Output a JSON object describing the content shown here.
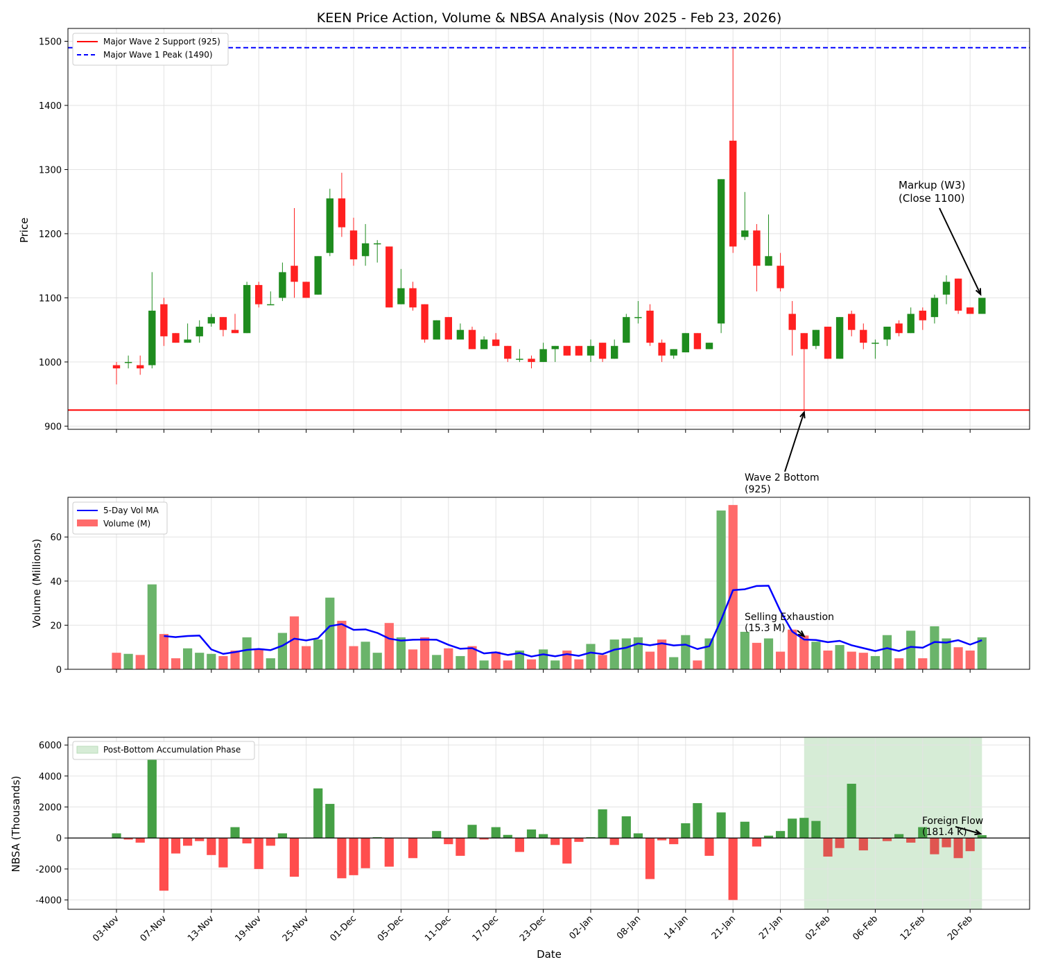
{
  "chart_data": {
    "type": "candlestick_volume_bar",
    "title": "KEEN Price Action, Volume & NBSA Analysis (Nov 2025 - Feb 23, 2026)",
    "xlabel": "Date",
    "x_tick_labels": [
      "03-Nov",
      "07-Nov",
      "13-Nov",
      "19-Nov",
      "25-Nov",
      "01-Dec",
      "05-Dec",
      "11-Dec",
      "17-Dec",
      "23-Dec",
      "02-Jan",
      "08-Jan",
      "14-Jan",
      "21-Jan",
      "27-Jan",
      "02-Feb",
      "06-Feb",
      "12-Feb",
      "20-Feb"
    ],
    "price_panel": {
      "ylabel": "Price",
      "ylim": [
        895,
        1520
      ],
      "yticks": [
        900,
        1000,
        1100,
        1200,
        1300,
        1400,
        1500
      ],
      "grid": true,
      "legend_position": "top-left",
      "reference_lines": [
        {
          "name": "Major Wave 2 Support (925)",
          "value": 925,
          "color": "#ff0000",
          "style": "solid"
        },
        {
          "name": "Major Wave 1 Peak (1490)",
          "value": 1490,
          "color": "#0000ff",
          "style": "dashed"
        }
      ],
      "candles": [
        {
          "o": 995,
          "h": 1000,
          "l": 965,
          "c": 990
        },
        {
          "o": 1000,
          "h": 1010,
          "l": 990,
          "c": 1000
        },
        {
          "o": 995,
          "h": 1010,
          "l": 980,
          "c": 990
        },
        {
          "o": 995,
          "h": 1140,
          "l": 990,
          "c": 1080
        },
        {
          "o": 1090,
          "h": 1100,
          "l": 1025,
          "c": 1040
        },
        {
          "o": 1045,
          "h": 1045,
          "l": 1030,
          "c": 1030
        },
        {
          "o": 1030,
          "h": 1060,
          "l": 1030,
          "c": 1035
        },
        {
          "o": 1040,
          "h": 1065,
          "l": 1030,
          "c": 1055
        },
        {
          "o": 1060,
          "h": 1075,
          "l": 1055,
          "c": 1070
        },
        {
          "o": 1070,
          "h": 1070,
          "l": 1040,
          "c": 1050
        },
        {
          "o": 1050,
          "h": 1075,
          "l": 1045,
          "c": 1045
        },
        {
          "o": 1045,
          "h": 1125,
          "l": 1045,
          "c": 1120
        },
        {
          "o": 1120,
          "h": 1125,
          "l": 1085,
          "c": 1090
        },
        {
          "o": 1090,
          "h": 1110,
          "l": 1090,
          "c": 1090
        },
        {
          "o": 1100,
          "h": 1155,
          "l": 1095,
          "c": 1140
        },
        {
          "o": 1150,
          "h": 1240,
          "l": 1100,
          "c": 1125
        },
        {
          "o": 1125,
          "h": 1125,
          "l": 1100,
          "c": 1100
        },
        {
          "o": 1105,
          "h": 1165,
          "l": 1105,
          "c": 1165
        },
        {
          "o": 1170,
          "h": 1270,
          "l": 1165,
          "c": 1255
        },
        {
          "o": 1255,
          "h": 1295,
          "l": 1195,
          "c": 1210
        },
        {
          "o": 1205,
          "h": 1225,
          "l": 1150,
          "c": 1160
        },
        {
          "o": 1165,
          "h": 1215,
          "l": 1150,
          "c": 1185
        },
        {
          "o": 1185,
          "h": 1190,
          "l": 1155,
          "c": 1185
        },
        {
          "o": 1180,
          "h": 1180,
          "l": 1085,
          "c": 1085
        },
        {
          "o": 1090,
          "h": 1145,
          "l": 1090,
          "c": 1115
        },
        {
          "o": 1115,
          "h": 1125,
          "l": 1080,
          "c": 1085
        },
        {
          "o": 1090,
          "h": 1090,
          "l": 1030,
          "c": 1035
        },
        {
          "o": 1035,
          "h": 1065,
          "l": 1035,
          "c": 1065
        },
        {
          "o": 1070,
          "h": 1070,
          "l": 1035,
          "c": 1035
        },
        {
          "o": 1035,
          "h": 1060,
          "l": 1035,
          "c": 1050
        },
        {
          "o": 1050,
          "h": 1055,
          "l": 1020,
          "c": 1020
        },
        {
          "o": 1020,
          "h": 1040,
          "l": 1020,
          "c": 1035
        },
        {
          "o": 1035,
          "h": 1045,
          "l": 1025,
          "c": 1025
        },
        {
          "o": 1025,
          "h": 1025,
          "l": 1000,
          "c": 1005
        },
        {
          "o": 1005,
          "h": 1020,
          "l": 1000,
          "c": 1005
        },
        {
          "o": 1005,
          "h": 1010,
          "l": 990,
          "c": 1000
        },
        {
          "o": 1000,
          "h": 1030,
          "l": 1000,
          "c": 1020
        },
        {
          "o": 1020,
          "h": 1025,
          "l": 1000,
          "c": 1025
        },
        {
          "o": 1025,
          "h": 1025,
          "l": 1010,
          "c": 1010
        },
        {
          "o": 1025,
          "h": 1025,
          "l": 1010,
          "c": 1010
        },
        {
          "o": 1010,
          "h": 1035,
          "l": 1000,
          "c": 1025
        },
        {
          "o": 1030,
          "h": 1030,
          "l": 1000,
          "c": 1005
        },
        {
          "o": 1005,
          "h": 1035,
          "l": 1005,
          "c": 1025
        },
        {
          "o": 1030,
          "h": 1075,
          "l": 1030,
          "c": 1070
        },
        {
          "o": 1070,
          "h": 1095,
          "l": 1060,
          "c": 1070
        },
        {
          "o": 1080,
          "h": 1090,
          "l": 1025,
          "c": 1030
        },
        {
          "o": 1030,
          "h": 1035,
          "l": 1000,
          "c": 1010
        },
        {
          "o": 1010,
          "h": 1020,
          "l": 1005,
          "c": 1020
        },
        {
          "o": 1015,
          "h": 1045,
          "l": 1015,
          "c": 1045
        },
        {
          "o": 1045,
          "h": 1045,
          "l": 1020,
          "c": 1020
        },
        {
          "o": 1020,
          "h": 1030,
          "l": 1020,
          "c": 1030
        },
        {
          "o": 1060,
          "h": 1285,
          "l": 1045,
          "c": 1285
        },
        {
          "o": 1345,
          "h": 1490,
          "l": 1170,
          "c": 1180
        },
        {
          "o": 1195,
          "h": 1265,
          "l": 1190,
          "c": 1205
        },
        {
          "o": 1205,
          "h": 1215,
          "l": 1110,
          "c": 1150
        },
        {
          "o": 1150,
          "h": 1230,
          "l": 1150,
          "c": 1165
        },
        {
          "o": 1150,
          "h": 1170,
          "l": 1110,
          "c": 1115
        },
        {
          "o": 1075,
          "h": 1095,
          "l": 1010,
          "c": 1050
        },
        {
          "o": 1045,
          "h": 1045,
          "l": 925,
          "c": 1020
        },
        {
          "o": 1025,
          "h": 1050,
          "l": 1020,
          "c": 1050
        },
        {
          "o": 1055,
          "h": 1055,
          "l": 1005,
          "c": 1005
        },
        {
          "o": 1005,
          "h": 1070,
          "l": 1005,
          "c": 1070
        },
        {
          "o": 1075,
          "h": 1080,
          "l": 1040,
          "c": 1050
        },
        {
          "o": 1050,
          "h": 1060,
          "l": 1020,
          "c": 1030
        },
        {
          "o": 1030,
          "h": 1035,
          "l": 1005,
          "c": 1030
        },
        {
          "o": 1035,
          "h": 1055,
          "l": 1025,
          "c": 1055
        },
        {
          "o": 1060,
          "h": 1065,
          "l": 1040,
          "c": 1045
        },
        {
          "o": 1045,
          "h": 1085,
          "l": 1045,
          "c": 1075
        },
        {
          "o": 1080,
          "h": 1085,
          "l": 1050,
          "c": 1065
        },
        {
          "o": 1070,
          "h": 1105,
          "l": 1060,
          "c": 1100
        },
        {
          "o": 1105,
          "h": 1135,
          "l": 1090,
          "c": 1125
        },
        {
          "o": 1130,
          "h": 1130,
          "l": 1075,
          "c": 1080
        },
        {
          "o": 1085,
          "h": 1085,
          "l": 1075,
          "c": 1075
        },
        {
          "o": 1075,
          "h": 1100,
          "l": 1075,
          "c": 1100
        }
      ],
      "annotations": [
        {
          "text": [
            "Markup (W3)",
            "(Close 1100)"
          ],
          "color": "#006400",
          "target_index": 73,
          "target_price": 1100
        },
        {
          "text": [
            "Wave 2 Bottom",
            "(925)"
          ],
          "color": "#ff0000",
          "target_index": 58,
          "target_price": 925
        }
      ]
    },
    "volume_panel": {
      "ylabel": "Volume (Millions)",
      "ylim": [
        0,
        78
      ],
      "yticks": [
        0,
        20,
        40,
        60
      ],
      "grid": true,
      "legend_position": "top-left",
      "series": [
        {
          "name": "Volume (M)",
          "values": [
            7.5,
            7,
            6.5,
            38.5,
            16,
            5,
            9.5,
            7.5,
            7,
            6,
            8.5,
            14.5,
            9,
            5,
            16.5,
            24,
            10.5,
            13.5,
            32.5,
            22,
            10.5,
            12.5,
            7.5,
            21,
            14.5,
            9,
            14.5,
            6.5,
            9.5,
            6,
            10.5,
            4,
            8,
            4,
            8.5,
            4.5,
            9,
            4,
            8.5,
            4.5,
            11.5,
            6.5,
            13.5,
            14,
            14.5,
            8,
            13.5,
            5.5,
            15.5,
            4,
            14,
            72,
            74.5,
            17,
            12,
            14,
            8,
            18,
            15.3,
            12.5,
            8.5,
            11,
            8,
            7.5,
            6,
            15.5,
            5,
            17.5,
            5,
            19.5,
            14,
            10,
            8.5,
            14.5
          ]
        },
        {
          "name": "5-Day Vol MA",
          "values": [
            null,
            null,
            null,
            null,
            15.1,
            14.6,
            15.1,
            15.3,
            9,
            7,
            7.8,
            8.8,
            9.2,
            8.7,
            10.7,
            13.9,
            13.1,
            14.1,
            19.6,
            20.5,
            17.9,
            18.1,
            16.5,
            13.9,
            13,
            13.4,
            13.5,
            13.4,
            11.1,
            9.3,
            9.6,
            7.2,
            7.7,
            6.5,
            7.4,
            5.8,
            6.8,
            5.9,
            6.9,
            6.1,
            7.6,
            6.9,
            8.9,
            9.8,
            11.7,
            10.9,
            11.8,
            10.8,
            11.2,
            9.2,
            10.5,
            22.4,
            35.9,
            36.3,
            37.8,
            37.9,
            26.4,
            17.1,
            13.5,
            13.3,
            12.3,
            12.9,
            10.9,
            9.6,
            8.3,
            9.6,
            8.3,
            10.2,
            9.8,
            12.4,
            12.1,
            13.2,
            11.2,
            13.2
          ]
        }
      ],
      "annotations": [
        {
          "text": [
            "Selling Exhaustion",
            "(15.3 M)"
          ],
          "color": "#8b0000",
          "target_index": 58,
          "target_value": 15.3
        }
      ]
    },
    "nbsa_panel": {
      "ylabel": "NBSA (Thousands)",
      "ylim": [
        -4600,
        6500
      ],
      "yticks": [
        -4000,
        -2000,
        0,
        2000,
        4000,
        6000
      ],
      "grid": true,
      "legend_position": "top-left",
      "values": [
        300,
        -100,
        -300,
        6000,
        -3400,
        -1000,
        -500,
        -200,
        -1100,
        -1900,
        700,
        -350,
        -2000,
        -500,
        300,
        -2500,
        0,
        3200,
        2200,
        -2600,
        -2400,
        -1950,
        50,
        -1850,
        0,
        -1300,
        0,
        450,
        -400,
        -1150,
        850,
        -100,
        700,
        200,
        -900,
        550,
        250,
        -450,
        -1650,
        -250,
        50,
        1850,
        -450,
        1400,
        300,
        -2650,
        -150,
        -400,
        950,
        2250,
        -1150,
        1650,
        -4000,
        1050,
        -550,
        150,
        450,
        1250,
        1300,
        1100,
        -1200,
        -650,
        3500,
        -800,
        -50,
        -200,
        250,
        -300,
        700,
        -1050,
        -600,
        -1300,
        -850,
        181.4
      ],
      "highlight": {
        "name": "Post-Bottom Accumulation Phase",
        "start_index": 58,
        "end_index": 73,
        "color": "#d6ecd6"
      },
      "annotations": [
        {
          "text": [
            "Foreign Flow",
            "(181.4 K)"
          ],
          "color": "#006400",
          "target_index": 73,
          "target_value": 181.4
        }
      ]
    },
    "colors": {
      "up": "#1e8c1e",
      "down": "#ff2020",
      "volume_up": "#6ab46a",
      "volume_down": "#ff6b6b",
      "nbsa_positive": "#45a045",
      "nbsa_negative": "#ff4d4d",
      "nbsa_negative_highlight": "#e05550",
      "ma_line": "#0000ff"
    }
  }
}
